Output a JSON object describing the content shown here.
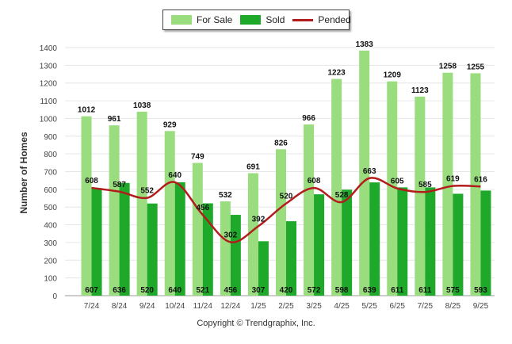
{
  "chart_data": {
    "type": "bar",
    "ylabel": "Number of Homes",
    "xlabel": "",
    "ylim": [
      0,
      1400
    ],
    "yticks": [
      0,
      100,
      200,
      300,
      400,
      500,
      600,
      700,
      800,
      900,
      1000,
      1100,
      1200,
      1300,
      1400
    ],
    "grid": true,
    "legend_position": "top-center",
    "categories": [
      "7/24",
      "8/24",
      "9/24",
      "10/24",
      "11/24",
      "12/24",
      "1/25",
      "2/25",
      "3/25",
      "4/25",
      "5/25",
      "6/25",
      "7/25",
      "8/25",
      "9/25"
    ],
    "series": [
      {
        "name": "For Sale",
        "kind": "bar",
        "color": "#99dd7f",
        "values": [
          1012,
          961,
          1038,
          929,
          749,
          532,
          691,
          826,
          966,
          1223,
          1383,
          1209,
          1123,
          1258,
          1255
        ]
      },
      {
        "name": "Sold",
        "kind": "bar",
        "color": "#1fa92a",
        "values": [
          607,
          636,
          520,
          640,
          521,
          456,
          307,
          420,
          572,
          598,
          639,
          611,
          611,
          575,
          593
        ]
      },
      {
        "name": "Pended",
        "kind": "line",
        "color": "#b31c1c",
        "values": [
          608,
          587,
          552,
          640,
          456,
          302,
          392,
          520,
          608,
          528,
          663,
          605,
          585,
          619,
          616
        ]
      }
    ]
  },
  "copyright": "Copyright © Trendgraphix, Inc."
}
